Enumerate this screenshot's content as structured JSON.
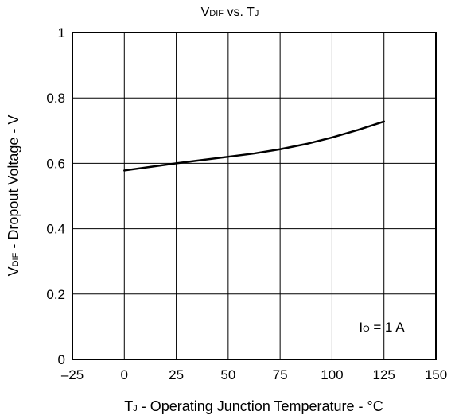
{
  "chart_data": {
    "type": "line",
    "title": {
      "main": "V",
      "sub1": "DIF",
      "mid": " vs. T",
      "sub2": "J"
    },
    "xlabel": {
      "pre": "T",
      "sub": "J",
      "post": " - Operating Junction Temperature - °C"
    },
    "ylabel": {
      "pre": "V",
      "sub": "DIF",
      "post": " - Dropout Voltage - V"
    },
    "xlim": [
      -25,
      150
    ],
    "ylim": [
      0,
      1
    ],
    "x_ticks": [
      -25,
      0,
      25,
      50,
      75,
      100,
      125,
      150
    ],
    "x_tick_labels": [
      "–25",
      "0",
      "25",
      "50",
      "75",
      "100",
      "125",
      "150"
    ],
    "y_ticks": [
      0,
      0.2,
      0.4,
      0.6,
      0.8,
      1
    ],
    "y_tick_labels": [
      "0",
      "0.2",
      "0.4",
      "0.6",
      "0.8",
      "1"
    ],
    "grid": true,
    "annotation": {
      "pre": "I",
      "sub": "O",
      "post": " = 1 A",
      "x": 113,
      "y": 0.1
    },
    "series": [
      {
        "x": [
          0,
          12.5,
          25,
          37.5,
          50,
          62.5,
          75,
          87.5,
          100,
          112.5,
          125
        ],
        "values": [
          0.578,
          0.589,
          0.6,
          0.61,
          0.62,
          0.63,
          0.643,
          0.659,
          0.679,
          0.702,
          0.728
        ]
      }
    ]
  }
}
